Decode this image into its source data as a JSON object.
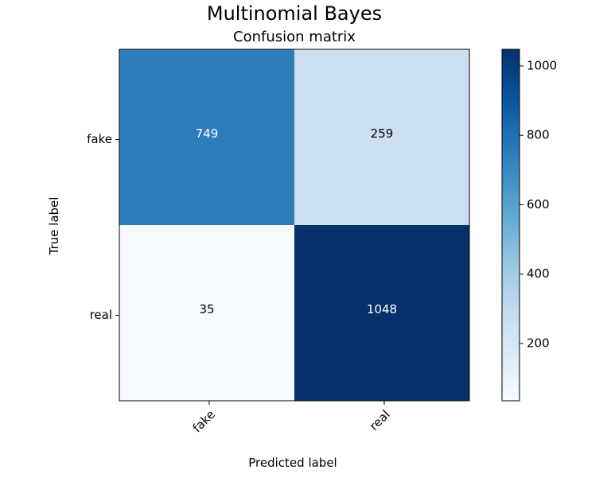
{
  "chart_data": {
    "type": "heatmap",
    "title": "Multinomial Bayes",
    "subtitle": "Confusion matrix",
    "xlabel": "Predicted label",
    "ylabel": "True label",
    "x_categories": [
      "fake",
      "real"
    ],
    "y_categories": [
      "fake",
      "real"
    ],
    "values": [
      [
        749,
        259
      ],
      [
        35,
        1048
      ]
    ],
    "colormap": "Blues",
    "colorbar": {
      "min": 35,
      "max": 1048,
      "ticks": [
        200,
        400,
        600,
        800,
        1000
      ]
    },
    "text_colors": {
      "light": "#ffffff",
      "dark": "#000000"
    }
  }
}
